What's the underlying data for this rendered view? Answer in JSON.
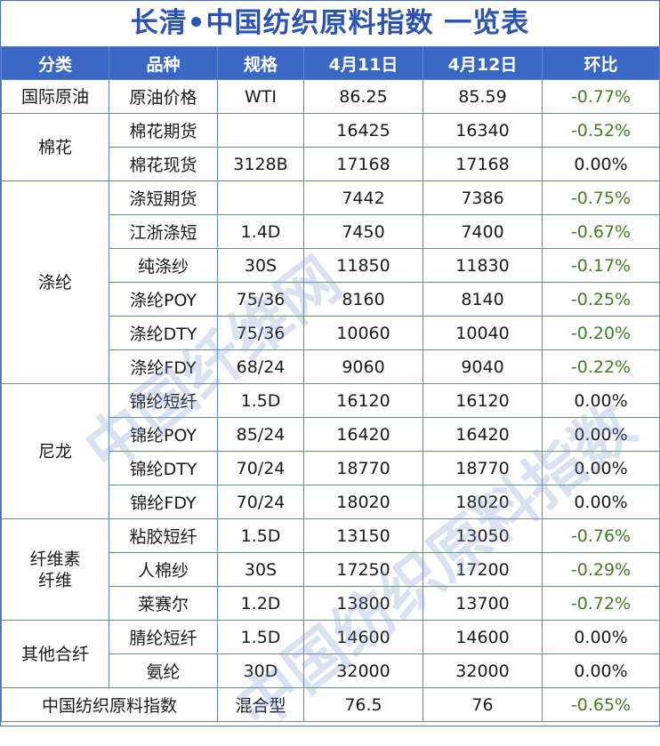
{
  "title": "长清•中国纺织原料指数 一览表",
  "headers": [
    "分类",
    "品种",
    "规格",
    "4月11日",
    "4月12日",
    "环比"
  ],
  "groups": [
    {
      "category": "国际原油",
      "rows": [
        {
          "name": "原油价格",
          "spec": "WTI",
          "d1": "86.25",
          "d2": "85.59",
          "change": "-0.77%"
        }
      ]
    },
    {
      "category": "棉花",
      "rows": [
        {
          "name": "棉花期货",
          "spec": "",
          "d1": "16425",
          "d2": "16340",
          "change": "-0.52%"
        },
        {
          "name": "棉花现货",
          "spec": "3128B",
          "d1": "17168",
          "d2": "17168",
          "change": "0.00%"
        }
      ]
    },
    {
      "category": "涤纶",
      "rows": [
        {
          "name": "涤短期货",
          "spec": "",
          "d1": "7442",
          "d2": "7386",
          "change": "-0.75%"
        },
        {
          "name": "江浙涤短",
          "spec": "1.4D",
          "d1": "7450",
          "d2": "7400",
          "change": "-0.67%"
        },
        {
          "name": "纯涤纱",
          "spec": "30S",
          "d1": "11850",
          "d2": "11830",
          "change": "-0.17%"
        },
        {
          "name": "涤纶POY",
          "spec": "75/36",
          "d1": "8160",
          "d2": "8140",
          "change": "-0.25%"
        },
        {
          "name": "涤纶DTY",
          "spec": "75/36",
          "d1": "10060",
          "d2": "10040",
          "change": "-0.20%"
        },
        {
          "name": "涤纶FDY",
          "spec": "68/24",
          "d1": "9060",
          "d2": "9040",
          "change": "-0.22%"
        }
      ]
    },
    {
      "category": "尼龙",
      "rows": [
        {
          "name": "锦纶短纤",
          "spec": "1.5D",
          "d1": "16120",
          "d2": "16120",
          "change": "0.00%"
        },
        {
          "name": "锦纶POY",
          "spec": "85/24",
          "d1": "16420",
          "d2": "16420",
          "change": "0.00%"
        },
        {
          "name": "锦纶DTY",
          "spec": "70/24",
          "d1": "18770",
          "d2": "18770",
          "change": "0.00%"
        },
        {
          "name": "锦纶FDY",
          "spec": "70/24",
          "d1": "18020",
          "d2": "18020",
          "change": "0.00%"
        }
      ]
    },
    {
      "category": "纤维素\n纤维",
      "rows": [
        {
          "name": "粘胶短纤",
          "spec": "1.5D",
          "d1": "13150",
          "d2": "13050",
          "change": "-0.76%"
        },
        {
          "name": "人棉纱",
          "spec": "30S",
          "d1": "17250",
          "d2": "17200",
          "change": "-0.29%"
        },
        {
          "name": "莱赛尔",
          "spec": "1.2D",
          "d1": "13800",
          "d2": "13700",
          "change": "-0.72%"
        }
      ]
    },
    {
      "category": "其他合纤",
      "rows": [
        {
          "name": "腈纶短纤",
          "spec": "1.5D",
          "d1": "14600",
          "d2": "14600",
          "change": "0.00%"
        },
        {
          "name": "氨纶",
          "spec": "30D",
          "d1": "32000",
          "d2": "32000",
          "change": "0.00%"
        }
      ]
    }
  ],
  "footer": {
    "name": "中国纺织原料指数",
    "spec": "混合型",
    "d1": "76.5",
    "d2": "76",
    "change": "-0.65%"
  },
  "watermark": {
    "line1": "中国纤维网",
    "line2": "中国纺织原料指数"
  },
  "colors": {
    "header_bg": "#3a68c4",
    "title": "#2a53b5",
    "negative": "#3f7f22",
    "border": "#5c86c7"
  }
}
